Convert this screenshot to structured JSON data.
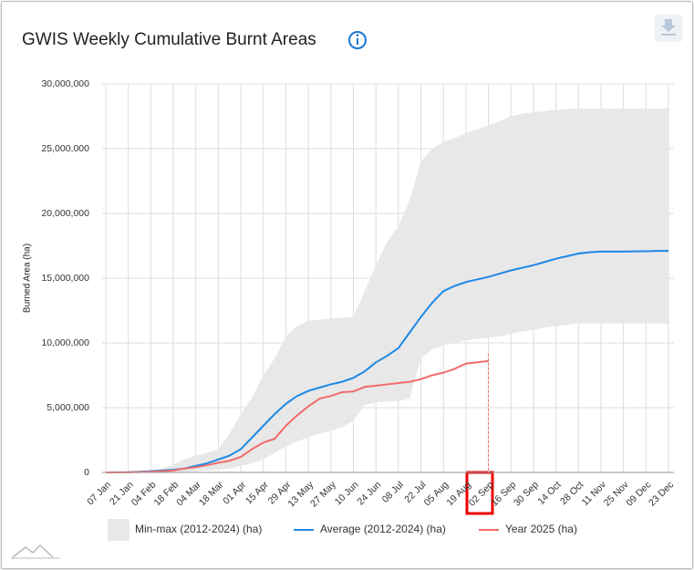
{
  "chart_data": {
    "type": "band-line",
    "title": "GWIS Weekly Cumulative Burnt Areas",
    "y_label": "Burned Area (ha)",
    "categories": [
      "07 Jan",
      null,
      "21 Jan",
      null,
      "04 Feb",
      null,
      "18 Feb",
      null,
      "04 Mar",
      null,
      "18 Mar",
      null,
      "01 Apr",
      null,
      "15 Apr",
      null,
      "29 Apr",
      null,
      "13 May",
      null,
      "27 May",
      null,
      "10 Jun",
      null,
      "24 Jun",
      null,
      "08 Jul",
      null,
      "22 Jul",
      null,
      "05 Aug",
      null,
      "19 Aug",
      null,
      "02 Sep",
      null,
      "16 Sep",
      null,
      "30 Sep",
      null,
      "14 Oct",
      null,
      "28 Oct",
      null,
      "11 Nov",
      null,
      "25 Nov",
      null,
      "09 Dec",
      null,
      "23 Dec"
    ],
    "ylim": [
      0,
      30000000
    ],
    "yticks": [
      {
        "value": 0,
        "label": "0"
      },
      {
        "value": 5000000,
        "label": "5,000,000"
      },
      {
        "value": 10000000,
        "label": "10,000,000"
      },
      {
        "value": 15000000,
        "label": "15,000,000"
      },
      {
        "value": 20000000,
        "label": "20,000,000"
      },
      {
        "value": 25000000,
        "label": "25,000,000"
      },
      {
        "value": 30000000,
        "label": "30,000,000"
      }
    ],
    "grid": true,
    "legend": "bottom",
    "band": {
      "name": "Min-max (2012-2024) (ha)",
      "color": "#e8e8e8",
      "min": [
        0,
        0,
        0,
        0,
        0,
        0,
        20000,
        50000,
        100000,
        150000,
        200000,
        300000,
        500000,
        700000,
        1000000,
        1500000,
        2000000,
        2400000,
        2700000,
        3000000,
        3200000,
        3500000,
        4000000,
        5200000,
        5400000,
        5500000,
        5500000,
        5700000,
        8800000,
        9500000,
        9800000,
        10000000,
        10200000,
        10300000,
        10400000,
        10500000,
        10700000,
        10900000,
        11000000,
        11200000,
        11300000,
        11400000,
        11500000,
        11500000,
        11500000,
        11500000,
        11500000,
        11500000,
        11500000,
        11500000,
        11500000
      ],
      "max": [
        0,
        0,
        20000,
        50000,
        100000,
        300000,
        600000,
        1000000,
        1300000,
        1500000,
        1800000,
        3000000,
        4500000,
        5800000,
        7500000,
        8800000,
        10500000,
        11300000,
        11700000,
        11800000,
        11900000,
        11950000,
        12000000,
        14000000,
        16000000,
        17800000,
        19000000,
        21000000,
        24000000,
        25000000,
        25500000,
        25800000,
        26200000,
        26500000,
        26800000,
        27100000,
        27500000,
        27700000,
        27800000,
        27900000,
        28000000,
        28050000,
        28100000,
        28100000,
        28100000,
        28100000,
        28100000,
        28100000,
        28100000,
        28100000,
        28100000
      ]
    },
    "series": [
      {
        "name": "Average (2012-2024) (ha)",
        "color": "#1e88e5",
        "values": [
          0,
          10000,
          20000,
          50000,
          100000,
          150000,
          200000,
          300000,
          500000,
          700000,
          1000000,
          1300000,
          1800000,
          2700000,
          3600000,
          4500000,
          5300000,
          5900000,
          6300000,
          6550000,
          6800000,
          7000000,
          7300000,
          7800000,
          8500000,
          9000000,
          9600000,
          10800000,
          12000000,
          13100000,
          14000000,
          14400000,
          14700000,
          14900000,
          15100000,
          15350000,
          15600000,
          15800000,
          16000000,
          16250000,
          16500000,
          16700000,
          16900000,
          17000000,
          17050000,
          17050000,
          17050000,
          17070000,
          17080000,
          17100000,
          17100000
        ]
      },
      {
        "name": "Year 2025 (ha)",
        "color": "#f26b6b",
        "values": [
          0,
          0,
          10000,
          30000,
          50000,
          100000,
          150000,
          300000,
          400000,
          550000,
          750000,
          900000,
          1200000,
          1800000,
          2300000,
          2600000,
          3600000,
          4400000,
          5100000,
          5700000,
          5900000,
          6200000,
          6250000,
          6600000,
          6700000,
          6800000,
          6900000,
          7000000,
          7200000,
          7500000,
          7700000,
          8000000,
          8400000,
          8500000,
          8600000,
          null,
          null,
          null,
          null,
          null,
          null,
          null,
          null,
          null,
          null,
          null,
          null,
          null,
          null,
          null,
          null
        ]
      }
    ]
  }
}
